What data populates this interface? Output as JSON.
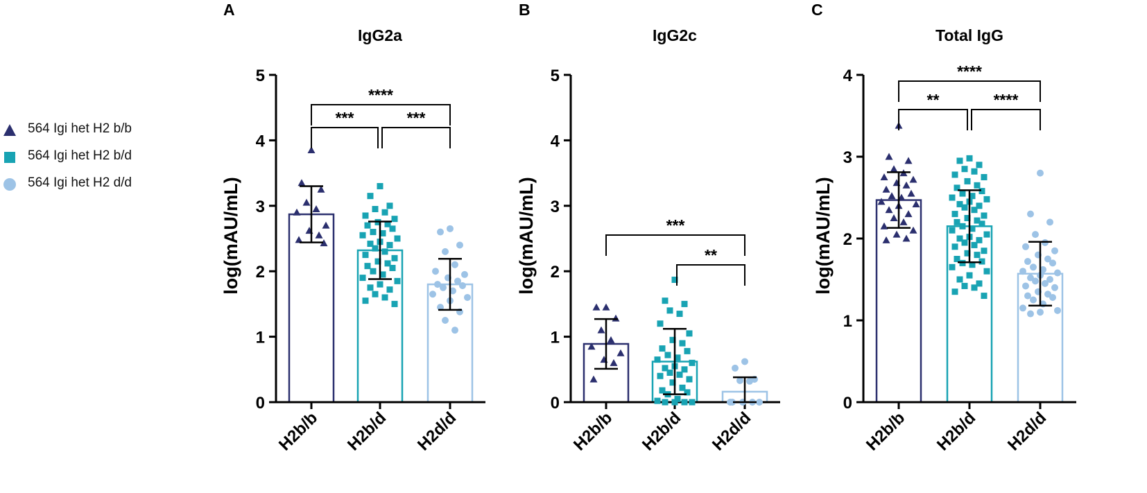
{
  "colors": {
    "bb": "#2b2f6e",
    "bd": "#18a3b3",
    "dd": "#9dc3e6",
    "axis": "#000000"
  },
  "legend": [
    {
      "label": "564 Igi het H2 b/b",
      "marker": "triangle",
      "color_key": "bb"
    },
    {
      "label": "564 Igi het H2 b/d",
      "marker": "square",
      "color_key": "bd"
    },
    {
      "label": "564 Igi het H2 d/d",
      "marker": "circle",
      "color_key": "dd"
    }
  ],
  "chart_data": [
    {
      "panel": "A",
      "type": "bar",
      "title": "IgG2a",
      "ylabel": "log(mAU/mL)",
      "ylim": [
        0,
        5
      ],
      "yticks": [
        "0",
        "1",
        "2",
        "3",
        "4",
        "5"
      ],
      "categories": [
        "H2b/b",
        "H2b/d",
        "H2d/d"
      ],
      "series": [
        {
          "name": "564 Igi het H2 b/b",
          "color_key": "bb",
          "marker": "triangle",
          "mean": 2.87,
          "sd": 0.43,
          "points": [
            3.85,
            3.35,
            3.25,
            3.05,
            2.95,
            2.9,
            2.7,
            2.62,
            2.55,
            2.48,
            2.43
          ]
        },
        {
          "name": "564 Igi het H2 b/d",
          "color_key": "bd",
          "marker": "square",
          "mean": 2.32,
          "sd": 0.44,
          "points": [
            3.3,
            3.15,
            3.0,
            2.95,
            2.9,
            2.85,
            2.8,
            2.75,
            2.72,
            2.7,
            2.65,
            2.6,
            2.58,
            2.55,
            2.5,
            2.45,
            2.42,
            2.4,
            2.35,
            2.3,
            2.25,
            2.2,
            2.15,
            2.12,
            2.08,
            2.05,
            2.0,
            1.95,
            1.9,
            1.85,
            1.8,
            1.75,
            1.72,
            1.65,
            1.6,
            1.55,
            1.5
          ]
        },
        {
          "name": "564 Igi het H2 d/d",
          "color_key": "dd",
          "marker": "circle",
          "mean": 1.8,
          "sd": 0.39,
          "points": [
            2.65,
            2.6,
            2.4,
            2.3,
            2.1,
            2.0,
            1.95,
            1.9,
            1.85,
            1.8,
            1.78,
            1.75,
            1.7,
            1.65,
            1.6,
            1.55,
            1.45,
            1.38,
            1.25,
            1.1
          ]
        }
      ],
      "comparisons": [
        {
          "from": 0,
          "to": 1,
          "label": "***",
          "level": 1
        },
        {
          "from": 1,
          "to": 2,
          "label": "***",
          "level": 1
        },
        {
          "from": 0,
          "to": 2,
          "label": "****",
          "level": 2
        }
      ]
    },
    {
      "panel": "B",
      "type": "bar",
      "title": "IgG2c",
      "ylabel": "log(mAU/mL)",
      "ylim": [
        0,
        5
      ],
      "yticks": [
        "0",
        "1",
        "2",
        "3",
        "4",
        "5"
      ],
      "categories": [
        "H2b/b",
        "H2b/d",
        "H2d/d"
      ],
      "series": [
        {
          "name": "564 Igi het H2 b/b",
          "color_key": "bb",
          "marker": "triangle",
          "mean": 0.89,
          "sd": 0.38,
          "points": [
            1.45,
            1.45,
            1.28,
            1.1,
            0.95,
            0.85,
            0.75,
            0.65,
            0.6,
            0.35
          ]
        },
        {
          "name": "564 Igi het H2 b/d",
          "color_key": "bd",
          "marker": "square",
          "mean": 0.62,
          "sd": 0.5,
          "points": [
            1.87,
            1.55,
            1.5,
            1.4,
            1.35,
            1.2,
            1.05,
            0.95,
            0.9,
            0.82,
            0.78,
            0.72,
            0.68,
            0.65,
            0.6,
            0.55,
            0.52,
            0.5,
            0.45,
            0.42,
            0.4,
            0.35,
            0.3,
            0.22,
            0.18,
            0.15,
            0.12,
            0.05,
            0.02,
            0.0,
            0.0,
            0.0,
            0.0
          ]
        },
        {
          "name": "564 Igi het H2 d/d",
          "color_key": "dd",
          "marker": "circle",
          "mean": 0.16,
          "sd": 0.22,
          "points": [
            0.62,
            0.52,
            0.35,
            0.33,
            0.32,
            0.0,
            0.0,
            0.0,
            0.0,
            0.0
          ]
        }
      ],
      "comparisons": [
        {
          "from": 1,
          "to": 2,
          "label": "**",
          "level": 1
        },
        {
          "from": 0,
          "to": 2,
          "label": "***",
          "level": 2
        }
      ]
    },
    {
      "panel": "C",
      "type": "bar",
      "title": "Total IgG",
      "ylabel": "log(mAU/mL)",
      "ylim": [
        0,
        4
      ],
      "yticks": [
        "0",
        "1",
        "2",
        "3",
        "4"
      ],
      "categories": [
        "H2b/b",
        "H2b/d",
        "H2d/d"
      ],
      "series": [
        {
          "name": "564 Igi het H2 b/b",
          "color_key": "bb",
          "marker": "triangle",
          "mean": 2.47,
          "sd": 0.34,
          "points": [
            3.38,
            3.0,
            2.95,
            2.85,
            2.8,
            2.75,
            2.72,
            2.68,
            2.65,
            2.6,
            2.55,
            2.52,
            2.5,
            2.45,
            2.42,
            2.4,
            2.35,
            2.3,
            2.25,
            2.2,
            2.15,
            2.1,
            2.05,
            2.0,
            1.98
          ]
        },
        {
          "name": "564 Igi het H2 b/d",
          "color_key": "bd",
          "marker": "square",
          "mean": 2.15,
          "sd": 0.44,
          "points": [
            2.98,
            2.95,
            2.9,
            2.85,
            2.82,
            2.78,
            2.75,
            2.7,
            2.65,
            2.62,
            2.58,
            2.55,
            2.52,
            2.5,
            2.48,
            2.45,
            2.42,
            2.4,
            2.38,
            2.35,
            2.3,
            2.28,
            2.25,
            2.22,
            2.2,
            2.18,
            2.15,
            2.12,
            2.1,
            2.05,
            2.02,
            2.0,
            1.98,
            1.95,
            1.92,
            1.9,
            1.85,
            1.82,
            1.8,
            1.75,
            1.72,
            1.7,
            1.68,
            1.65,
            1.6,
            1.55,
            1.5,
            1.45,
            1.42,
            1.4,
            1.35,
            1.3
          ]
        },
        {
          "name": "564 Igi het H2 d/d",
          "color_key": "dd",
          "marker": "circle",
          "mean": 1.57,
          "sd": 0.39,
          "points": [
            2.8,
            2.3,
            2.2,
            2.05,
            1.95,
            1.9,
            1.85,
            1.8,
            1.75,
            1.72,
            1.7,
            1.65,
            1.62,
            1.6,
            1.58,
            1.55,
            1.52,
            1.5,
            1.48,
            1.45,
            1.42,
            1.4,
            1.35,
            1.32,
            1.3,
            1.28,
            1.25,
            1.2,
            1.15,
            1.12,
            1.1,
            1.08
          ]
        }
      ],
      "comparisons": [
        {
          "from": 0,
          "to": 1,
          "label": "**",
          "level": 1
        },
        {
          "from": 1,
          "to": 2,
          "label": "****",
          "level": 1
        },
        {
          "from": 0,
          "to": 2,
          "label": "****",
          "level": 2
        }
      ]
    }
  ]
}
